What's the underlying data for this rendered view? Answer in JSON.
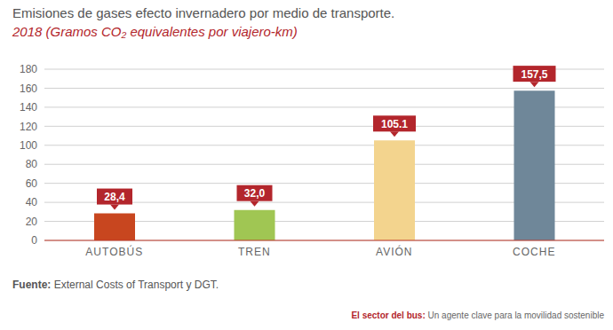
{
  "chart_data": {
    "type": "bar",
    "title": "Emisiones de gases efecto invernadero por medio de transporte.",
    "subtitle": "2018 (Gramos CO₂ equivalentes por viajero-km)",
    "categories": [
      "AUTOBÚS",
      "TREN",
      "AVIÓN",
      "COCHE"
    ],
    "values": [
      28.4,
      32.0,
      105.1,
      157.5
    ],
    "value_labels": [
      "28,4",
      "32,0",
      "105.1",
      "157,5"
    ],
    "colors": [
      "#c8461f",
      "#a0c653",
      "#f3d48e",
      "#6f8799"
    ],
    "ylim": [
      0,
      180
    ],
    "yticks": [
      0,
      20,
      40,
      60,
      80,
      100,
      120,
      140,
      160,
      180
    ],
    "grid": true,
    "data_labels": true,
    "source": {
      "label": "Fuente:",
      "text": "External Costs of Transport y DGT."
    },
    "footer": {
      "label": "El sector del bus:",
      "text": "Un agente clave para la movilidad sostenible"
    }
  }
}
